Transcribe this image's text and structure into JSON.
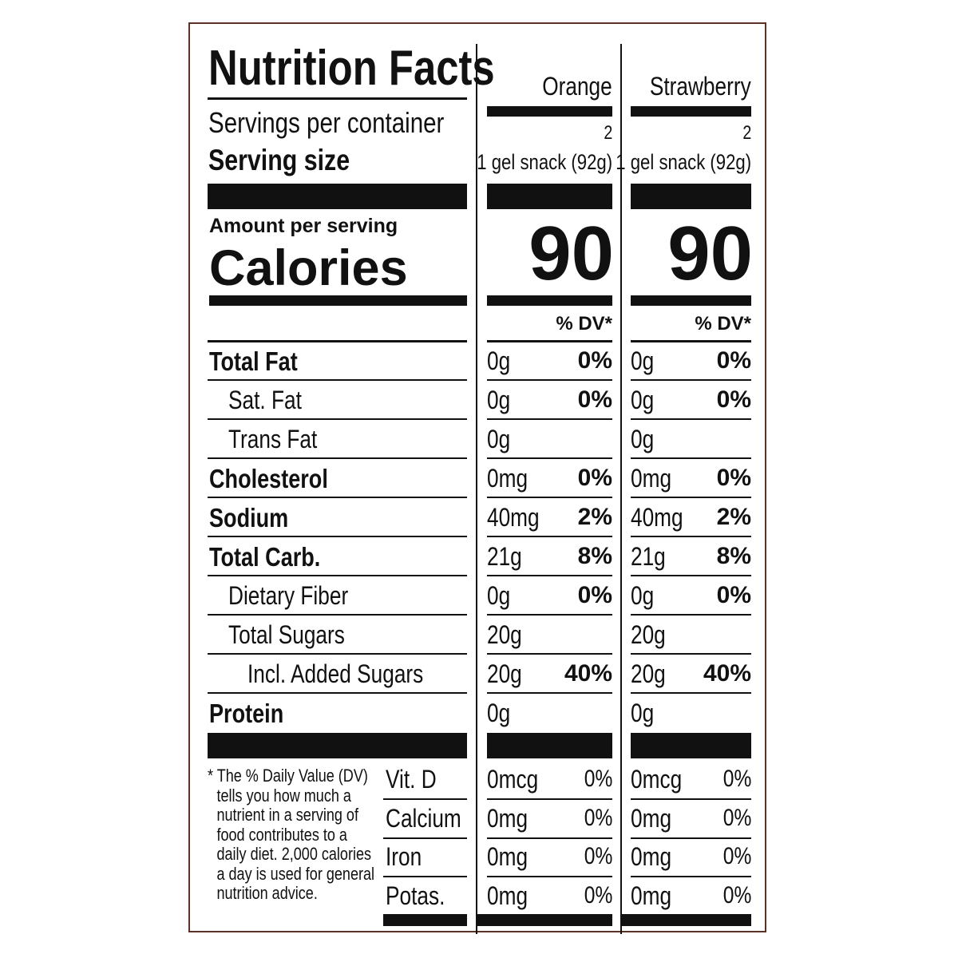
{
  "title": "Nutrition Facts",
  "servings_per_container_label": "Servings per container",
  "serving_size_label": "Serving size",
  "amount_per_serving_label": "Amount per serving",
  "calories_label": "Calories",
  "nutrients": [
    "Total Fat",
    "Sat. Fat",
    "Trans Fat",
    "Cholesterol",
    "Sodium",
    "Total Carb.",
    "Dietary Fiber",
    "Total Sugars",
    "Incl. Added Sugars",
    "Protein"
  ],
  "footnote": "* The % Daily Value (DV) tells you how much a nutrient in a serving of food contributes to a daily diet. 2,000 calories a day is used for general nutrition advice.",
  "vitamins": [
    "Vit. D",
    "Calcium",
    "Iron",
    "Potas."
  ],
  "products": [
    {
      "name": "Orange",
      "servings_per_container": "2",
      "serving_size": "1 gel snack (92g)",
      "calories": "90",
      "dv_header": "% DV*",
      "nutrients": [
        {
          "amount": "0g",
          "dv": "0%"
        },
        {
          "amount": "0g",
          "dv": "0%"
        },
        {
          "amount": "0g"
        },
        {
          "amount": "0mg",
          "dv": "0%"
        },
        {
          "amount": "40mg",
          "dv": "2%"
        },
        {
          "amount": "21g",
          "dv": "8%"
        },
        {
          "amount": "0g",
          "dv": "0%"
        },
        {
          "amount": "20g"
        },
        {
          "amount": "20g",
          "dv": "40%"
        },
        {
          "amount": "0g"
        }
      ],
      "vitamins": [
        {
          "amount": "0mcg",
          "dv": "0%"
        },
        {
          "amount": "0mg",
          "dv": "0%"
        },
        {
          "amount": "0mg",
          "dv": "0%"
        },
        {
          "amount": "0mg",
          "dv": "0%"
        }
      ]
    },
    {
      "name": "Strawberry",
      "servings_per_container": "2",
      "serving_size": "1 gel snack (92g)",
      "calories": "90",
      "dv_header": "% DV*",
      "nutrients": [
        {
          "amount": "0g",
          "dv": "0%"
        },
        {
          "amount": "0g",
          "dv": "0%"
        },
        {
          "amount": "0g"
        },
        {
          "amount": "0mg",
          "dv": "0%"
        },
        {
          "amount": "40mg",
          "dv": "2%"
        },
        {
          "amount": "21g",
          "dv": "8%"
        },
        {
          "amount": "0g",
          "dv": "0%"
        },
        {
          "amount": "20g"
        },
        {
          "amount": "20g",
          "dv": "40%"
        },
        {
          "amount": "0g"
        }
      ],
      "vitamins": [
        {
          "amount": "0mcg",
          "dv": "0%"
        },
        {
          "amount": "0mg",
          "dv": "0%"
        },
        {
          "amount": "0mg",
          "dv": "0%"
        },
        {
          "amount": "0mg",
          "dv": "0%"
        }
      ]
    }
  ]
}
